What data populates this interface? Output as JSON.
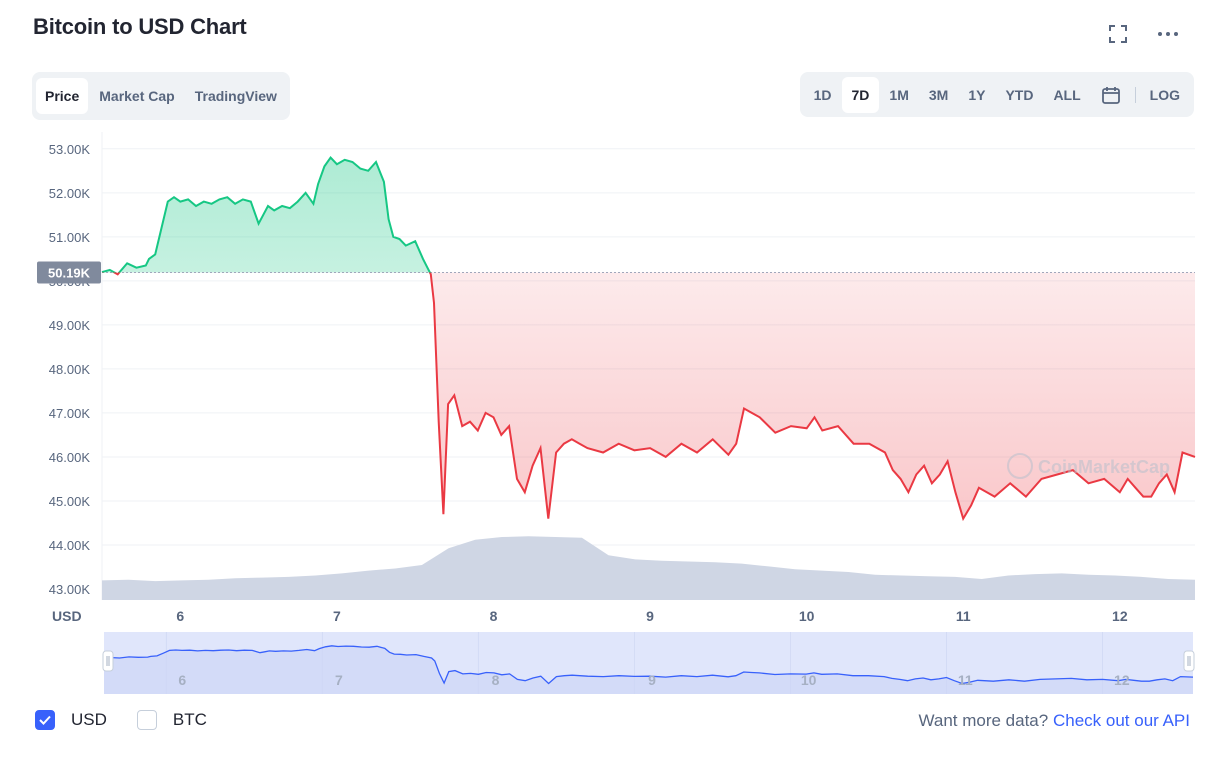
{
  "header": {
    "title": "Bitcoin to USD Chart"
  },
  "icons": {
    "fullscreen": "fullscreen-icon",
    "more": "more-icon",
    "calendar": "calendar-icon",
    "checkmark": "checkmark-icon"
  },
  "tabs_left": [
    {
      "label": "Price",
      "active": true
    },
    {
      "label": "Market Cap",
      "active": false
    },
    {
      "label": "TradingView",
      "active": false
    }
  ],
  "range_tabs": [
    {
      "label": "1D",
      "active": false
    },
    {
      "label": "7D",
      "active": true
    },
    {
      "label": "1M",
      "active": false
    },
    {
      "label": "3M",
      "active": false
    },
    {
      "label": "1Y",
      "active": false
    },
    {
      "label": "YTD",
      "active": false
    },
    {
      "label": "ALL",
      "active": false
    }
  ],
  "log_label": "LOG",
  "footer": {
    "usd_label": "USD",
    "usd_checked": true,
    "btc_label": "BTC",
    "btc_checked": false,
    "more_text": "Want more data?",
    "api_link": "Check out our API"
  },
  "colors": {
    "up": "#16c784",
    "down": "#ea3943",
    "volume": "#cfd6e4",
    "accent": "#3861fb",
    "navigator_fill": "#e0e6fb"
  },
  "chart_data": {
    "type": "line",
    "title": "",
    "xlabel": "",
    "ylabel": "",
    "unit_label": "USD",
    "watermark": "CoinMarketCap",
    "y_ticks": [
      "53.00K",
      "52.00K",
      "51.00K",
      "50.00K",
      "49.00K",
      "48.00K",
      "47.00K",
      "46.00K",
      "45.00K",
      "44.00K",
      "43.00K"
    ],
    "y_tick_values": [
      53000,
      52000,
      51000,
      50000,
      49000,
      48000,
      47000,
      46000,
      45000,
      44000,
      43000
    ],
    "ylim": [
      42750,
      53200
    ],
    "x_ticks": [
      "6",
      "7",
      "8",
      "9",
      "10",
      "11",
      "12"
    ],
    "x_tick_values": [
      6,
      7,
      8,
      9,
      10,
      11,
      12
    ],
    "xlim": [
      5.5,
      12.48
    ],
    "reference": {
      "value": 50190,
      "label": "50.19K"
    },
    "series": [
      {
        "x": [
          5.5,
          5.55,
          5.6,
          5.66,
          5.72,
          5.78,
          5.8,
          5.84,
          5.88,
          5.92,
          5.96,
          6.0,
          6.05,
          6.1,
          6.15,
          6.2,
          6.25,
          6.3,
          6.35,
          6.4,
          6.45,
          6.5,
          6.53,
          6.56,
          6.6,
          6.65,
          6.7,
          6.75,
          6.8,
          6.85,
          6.88,
          6.92,
          6.96,
          7.0,
          7.05,
          7.1,
          7.15,
          7.2,
          7.25,
          7.3,
          7.33,
          7.36,
          7.4,
          7.44,
          7.5,
          7.55,
          7.6,
          7.62,
          7.65,
          7.68,
          7.71,
          7.75,
          7.8,
          7.85,
          7.9,
          7.95,
          8.0,
          8.05,
          8.1,
          8.15,
          8.2,
          8.25,
          8.3,
          8.35,
          8.4,
          8.45,
          8.5,
          8.55,
          8.6,
          8.7,
          8.8,
          8.9,
          9.0,
          9.1,
          9.2,
          9.3,
          9.4,
          9.5,
          9.55,
          9.6,
          9.65,
          9.7,
          9.8,
          9.9,
          10.0,
          10.05,
          10.1,
          10.2,
          10.3,
          10.4,
          10.5,
          10.55,
          10.6,
          10.65,
          10.7,
          10.75,
          10.8,
          10.85,
          10.9,
          10.95,
          11.0,
          11.05,
          11.1,
          11.2,
          11.3,
          11.4,
          11.5,
          11.6,
          11.7,
          11.8,
          11.9,
          12.0,
          12.05,
          12.1,
          12.15,
          12.2,
          12.25,
          12.3,
          12.35,
          12.4,
          12.48
        ],
        "y": [
          50200,
          50250,
          50150,
          50400,
          50300,
          50350,
          50500,
          50600,
          51200,
          51800,
          51900,
          51800,
          51850,
          51700,
          51800,
          51750,
          51850,
          51900,
          51750,
          51850,
          51800,
          51300,
          51500,
          51700,
          51600,
          51700,
          51650,
          51800,
          52000,
          51750,
          52200,
          52600,
          52800,
          52650,
          52750,
          52700,
          52550,
          52500,
          52700,
          52250,
          51400,
          51000,
          50950,
          50800,
          50900,
          50500,
          50150,
          49500,
          46800,
          44700,
          47200,
          47400,
          46700,
          46800,
          46600,
          47000,
          46900,
          46500,
          46700,
          45500,
          45200,
          45800,
          46200,
          44600,
          46100,
          46300,
          46400,
          46300,
          46200,
          46100,
          46300,
          46150,
          46200,
          46000,
          46300,
          46100,
          46400,
          46050,
          46300,
          47100,
          47000,
          46900,
          46550,
          46700,
          46650,
          46900,
          46600,
          46700,
          46300,
          46300,
          46100,
          45700,
          45500,
          45200,
          45600,
          45800,
          45400,
          45600,
          45900,
          45200,
          44600,
          44900,
          45300,
          45100,
          45400,
          45100,
          45500,
          45600,
          45700,
          45400,
          45500,
          45200,
          45500,
          45300,
          45100,
          45100,
          45400,
          45600,
          45200,
          46100,
          46000
        ],
        "color": "#ea3943"
      }
    ],
    "volume_relative": [
      0.28,
      0.29,
      0.27,
      0.28,
      0.29,
      0.31,
      0.32,
      0.33,
      0.35,
      0.38,
      0.42,
      0.45,
      0.5,
      0.74,
      0.86,
      0.9,
      0.91,
      0.9,
      0.89,
      0.64,
      0.58,
      0.56,
      0.55,
      0.54,
      0.52,
      0.48,
      0.44,
      0.42,
      0.4,
      0.36,
      0.35,
      0.34,
      0.33,
      0.3,
      0.35,
      0.37,
      0.38,
      0.36,
      0.35,
      0.33,
      0.3,
      0.29
    ],
    "navigator_ticks": [
      "6",
      "7",
      "8",
      "9",
      "10",
      "11",
      "12"
    ]
  }
}
